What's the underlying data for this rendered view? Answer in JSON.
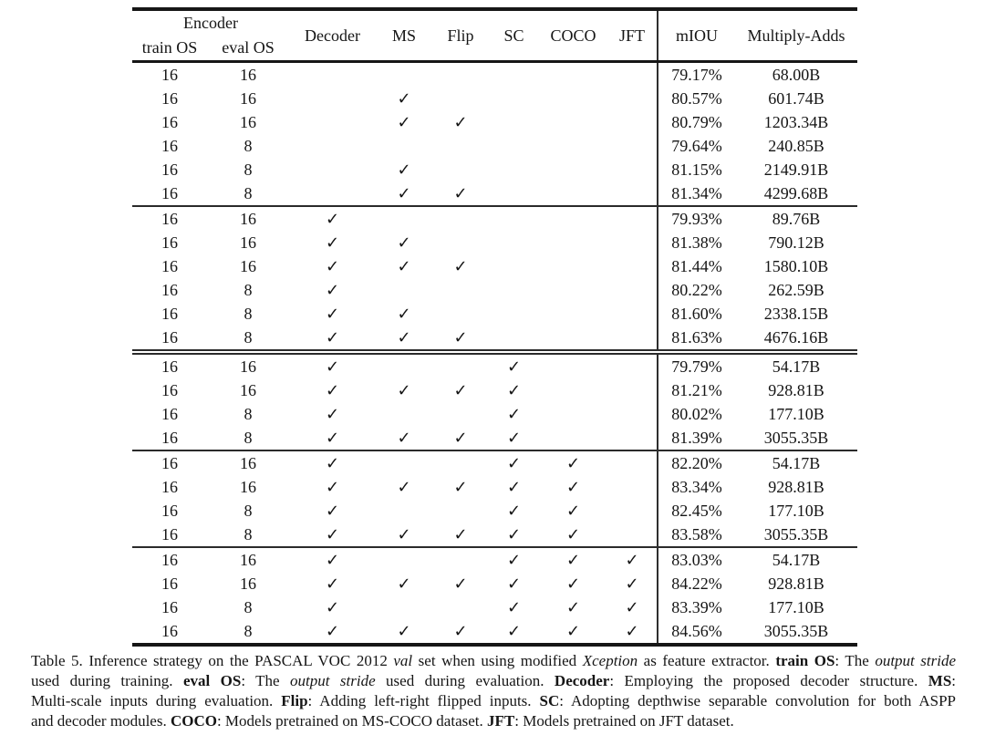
{
  "colors": {
    "background": "#ffffff",
    "text": "#151515",
    "rule": "#1c1c1c"
  },
  "table": {
    "check_glyph": "✓",
    "header": {
      "encoder_group": "Encoder",
      "train_os": "train OS",
      "eval_os": "eval OS",
      "decoder": "Decoder",
      "ms": "MS",
      "flip": "Flip",
      "sc": "SC",
      "coco": "COCO",
      "jft": "JFT",
      "miou": "mIOU",
      "multiply_adds": "Multiply-Adds"
    },
    "blocks": [
      {
        "rows": [
          {
            "train_os": "16",
            "eval_os": "16",
            "decoder": "",
            "ms": "",
            "flip": "",
            "sc": "",
            "coco": "",
            "jft": "",
            "miou": "79.17%",
            "madds": "68.00B"
          },
          {
            "train_os": "16",
            "eval_os": "16",
            "decoder": "",
            "ms": "✓",
            "flip": "",
            "sc": "",
            "coco": "",
            "jft": "",
            "miou": "80.57%",
            "madds": "601.74B"
          },
          {
            "train_os": "16",
            "eval_os": "16",
            "decoder": "",
            "ms": "✓",
            "flip": "✓",
            "sc": "",
            "coco": "",
            "jft": "",
            "miou": "80.79%",
            "madds": "1203.34B"
          },
          {
            "train_os": "16",
            "eval_os": "8",
            "decoder": "",
            "ms": "",
            "flip": "",
            "sc": "",
            "coco": "",
            "jft": "",
            "miou": "79.64%",
            "madds": "240.85B"
          },
          {
            "train_os": "16",
            "eval_os": "8",
            "decoder": "",
            "ms": "✓",
            "flip": "",
            "sc": "",
            "coco": "",
            "jft": "",
            "miou": "81.15%",
            "madds": "2149.91B"
          },
          {
            "train_os": "16",
            "eval_os": "8",
            "decoder": "",
            "ms": "✓",
            "flip": "✓",
            "sc": "",
            "coco": "",
            "jft": "",
            "miou": "81.34%",
            "madds": "4299.68B"
          }
        ]
      },
      {
        "rows": [
          {
            "train_os": "16",
            "eval_os": "16",
            "decoder": "✓",
            "ms": "",
            "flip": "",
            "sc": "",
            "coco": "",
            "jft": "",
            "miou": "79.93%",
            "madds": "89.76B"
          },
          {
            "train_os": "16",
            "eval_os": "16",
            "decoder": "✓",
            "ms": "✓",
            "flip": "",
            "sc": "",
            "coco": "",
            "jft": "",
            "miou": "81.38%",
            "madds": "790.12B"
          },
          {
            "train_os": "16",
            "eval_os": "16",
            "decoder": "✓",
            "ms": "✓",
            "flip": "✓",
            "sc": "",
            "coco": "",
            "jft": "",
            "miou": "81.44%",
            "madds": "1580.10B"
          },
          {
            "train_os": "16",
            "eval_os": "8",
            "decoder": "✓",
            "ms": "",
            "flip": "",
            "sc": "",
            "coco": "",
            "jft": "",
            "miou": "80.22%",
            "madds": "262.59B"
          },
          {
            "train_os": "16",
            "eval_os": "8",
            "decoder": "✓",
            "ms": "✓",
            "flip": "",
            "sc": "",
            "coco": "",
            "jft": "",
            "miou": "81.60%",
            "madds": "2338.15B"
          },
          {
            "train_os": "16",
            "eval_os": "8",
            "decoder": "✓",
            "ms": "✓",
            "flip": "✓",
            "sc": "",
            "coco": "",
            "jft": "",
            "miou": "81.63%",
            "madds": "4676.16B"
          }
        ]
      },
      {
        "rows": [
          {
            "train_os": "16",
            "eval_os": "16",
            "decoder": "✓",
            "ms": "",
            "flip": "",
            "sc": "✓",
            "coco": "",
            "jft": "",
            "miou": "79.79%",
            "madds": "54.17B"
          },
          {
            "train_os": "16",
            "eval_os": "16",
            "decoder": "✓",
            "ms": "✓",
            "flip": "✓",
            "sc": "✓",
            "coco": "",
            "jft": "",
            "miou": "81.21%",
            "madds": "928.81B"
          },
          {
            "train_os": "16",
            "eval_os": "8",
            "decoder": "✓",
            "ms": "",
            "flip": "",
            "sc": "✓",
            "coco": "",
            "jft": "",
            "miou": "80.02%",
            "madds": "177.10B"
          },
          {
            "train_os": "16",
            "eval_os": "8",
            "decoder": "✓",
            "ms": "✓",
            "flip": "✓",
            "sc": "✓",
            "coco": "",
            "jft": "",
            "miou": "81.39%",
            "madds": "3055.35B"
          }
        ]
      },
      {
        "rows": [
          {
            "train_os": "16",
            "eval_os": "16",
            "decoder": "✓",
            "ms": "",
            "flip": "",
            "sc": "✓",
            "coco": "✓",
            "jft": "",
            "miou": "82.20%",
            "madds": "54.17B"
          },
          {
            "train_os": "16",
            "eval_os": "16",
            "decoder": "✓",
            "ms": "✓",
            "flip": "✓",
            "sc": "✓",
            "coco": "✓",
            "jft": "",
            "miou": "83.34%",
            "madds": "928.81B"
          },
          {
            "train_os": "16",
            "eval_os": "8",
            "decoder": "✓",
            "ms": "",
            "flip": "",
            "sc": "✓",
            "coco": "✓",
            "jft": "",
            "miou": "82.45%",
            "madds": "177.10B"
          },
          {
            "train_os": "16",
            "eval_os": "8",
            "decoder": "✓",
            "ms": "✓",
            "flip": "✓",
            "sc": "✓",
            "coco": "✓",
            "jft": "",
            "miou": "83.58%",
            "madds": "3055.35B"
          }
        ]
      },
      {
        "rows": [
          {
            "train_os": "16",
            "eval_os": "16",
            "decoder": "✓",
            "ms": "",
            "flip": "",
            "sc": "✓",
            "coco": "✓",
            "jft": "✓",
            "miou": "83.03%",
            "madds": "54.17B"
          },
          {
            "train_os": "16",
            "eval_os": "16",
            "decoder": "✓",
            "ms": "✓",
            "flip": "✓",
            "sc": "✓",
            "coco": "✓",
            "jft": "✓",
            "miou": "84.22%",
            "madds": "928.81B"
          },
          {
            "train_os": "16",
            "eval_os": "8",
            "decoder": "✓",
            "ms": "",
            "flip": "",
            "sc": "✓",
            "coco": "✓",
            "jft": "✓",
            "miou": "83.39%",
            "madds": "177.10B"
          },
          {
            "train_os": "16",
            "eval_os": "8",
            "decoder": "✓",
            "ms": "✓",
            "flip": "✓",
            "sc": "✓",
            "coco": "✓",
            "jft": "✓",
            "miou": "84.56%",
            "madds": "3055.35B"
          }
        ]
      }
    ]
  },
  "caption": {
    "lines": [
      [
        {
          "t": "Table 5. Inference strategy on the PASCAL VOC 2012 ",
          "s": "n"
        },
        {
          "t": "val",
          "s": "i"
        },
        {
          "t": " set when using modified ",
          "s": "n"
        },
        {
          "t": "Xception",
          "s": "i"
        },
        {
          "t": " as feature extractor. ",
          "s": "n"
        },
        {
          "t": "train OS",
          "s": "b"
        },
        {
          "t": ": The ",
          "s": "n"
        },
        {
          "t": "output stride",
          "s": "i"
        }
      ],
      [
        {
          "t": "used during training. ",
          "s": "n"
        },
        {
          "t": "eval OS",
          "s": "b"
        },
        {
          "t": ": The ",
          "s": "n"
        },
        {
          "t": "output stride",
          "s": "i"
        },
        {
          "t": " used during evaluation. ",
          "s": "n"
        },
        {
          "t": "Decoder",
          "s": "b"
        },
        {
          "t": ": Employing the proposed decoder structure. ",
          "s": "n"
        },
        {
          "t": "MS",
          "s": "b"
        },
        {
          "t": ":",
          "s": "n"
        }
      ],
      [
        {
          "t": "Multi-scale inputs during evaluation. ",
          "s": "n"
        },
        {
          "t": "Flip",
          "s": "b"
        },
        {
          "t": ": Adding left-right flipped inputs. ",
          "s": "n"
        },
        {
          "t": "SC",
          "s": "b"
        },
        {
          "t": ": Adopting depthwise separable convolution for both ASPP",
          "s": "n"
        }
      ],
      [
        {
          "t": "and decoder modules. ",
          "s": "n"
        },
        {
          "t": "COCO",
          "s": "b"
        },
        {
          "t": ": Models pretrained on MS-COCO dataset. ",
          "s": "n"
        },
        {
          "t": "JFT",
          "s": "b"
        },
        {
          "t": ": Models pretrained on JFT dataset.",
          "s": "n"
        }
      ]
    ]
  }
}
